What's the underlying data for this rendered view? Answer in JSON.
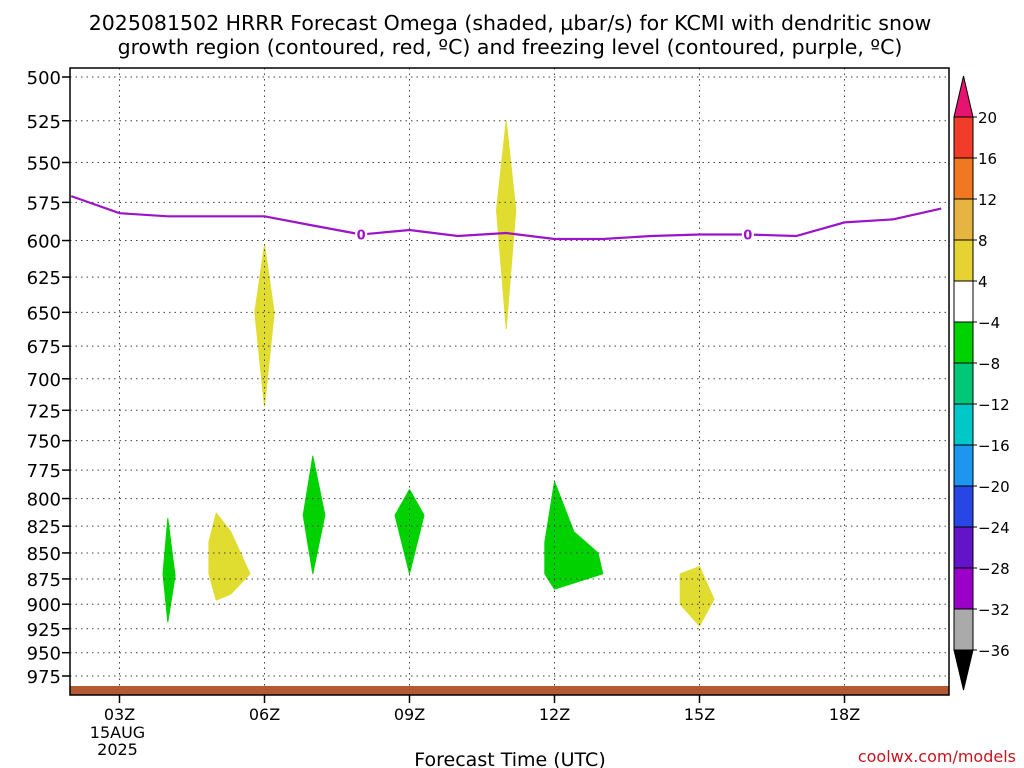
{
  "chart_data": {
    "type": "area",
    "title_line1": "2025081502 HRRR Forecast Omega (shaded, µbar/s) for KCMI with dendritic snow",
    "title_line2": "growth region (contoured, red, ºC) and freezing level (contoured, purple, ºC)",
    "xlabel": "Forecast Time (UTC)",
    "credit": "coolwx.com/models",
    "y_ticks": [
      500,
      525,
      550,
      575,
      600,
      625,
      650,
      675,
      700,
      725,
      750,
      775,
      800,
      825,
      850,
      875,
      900,
      925,
      950,
      975
    ],
    "ylim": [
      500,
      1000
    ],
    "y_scale": "log-pressure (inverted)",
    "x_ticks": [
      {
        "hour": 3,
        "label": "03Z",
        "date": "15AUG",
        "year": "2025"
      },
      {
        "hour": 6,
        "label": "06Z"
      },
      {
        "hour": 9,
        "label": "09Z"
      },
      {
        "hour": 12,
        "label": "12Z"
      },
      {
        "hour": 15,
        "label": "15Z"
      },
      {
        "hour": 18,
        "label": "18Z"
      }
    ],
    "xlim": [
      2,
      20
    ],
    "grid": true,
    "freezing_level": {
      "contour_label": "0",
      "color": "#9c14c8",
      "points": [
        [
          2,
          571
        ],
        [
          3,
          582
        ],
        [
          4,
          584
        ],
        [
          5,
          584
        ],
        [
          6,
          584
        ],
        [
          7,
          590
        ],
        [
          8,
          596
        ],
        [
          9,
          593
        ],
        [
          10,
          597
        ],
        [
          11,
          595
        ],
        [
          12,
          599
        ],
        [
          13,
          599
        ],
        [
          14,
          597
        ],
        [
          15,
          596
        ],
        [
          16,
          596
        ],
        [
          17,
          597
        ],
        [
          18,
          588
        ],
        [
          19,
          586
        ],
        [
          20,
          579
        ]
      ],
      "label_positions": [
        [
          8,
          596
        ],
        [
          16,
          596
        ]
      ]
    },
    "omega_regions": [
      {
        "color": "#e0dc30",
        "points": [
          [
            11.0,
            525
          ],
          [
            11.2,
            580
          ],
          [
            11.0,
            662
          ],
          [
            10.8,
            580
          ]
        ]
      },
      {
        "color": "#e0dc30",
        "points": [
          [
            6.0,
            603
          ],
          [
            6.2,
            650
          ],
          [
            6.0,
            722
          ],
          [
            5.8,
            650
          ]
        ]
      },
      {
        "color": "#00d200",
        "points": [
          [
            7.0,
            763
          ],
          [
            7.25,
            815
          ],
          [
            7.0,
            870
          ],
          [
            6.8,
            815
          ]
        ]
      },
      {
        "color": "#00d200",
        "points": [
          [
            4.0,
            818
          ],
          [
            4.15,
            872
          ],
          [
            4.0,
            918
          ],
          [
            3.9,
            870
          ]
        ]
      },
      {
        "color": "#e0dc30",
        "points": [
          [
            5.0,
            813
          ],
          [
            5.3,
            830
          ],
          [
            5.7,
            870
          ],
          [
            5.3,
            890
          ],
          [
            5.0,
            896
          ],
          [
            4.85,
            870
          ],
          [
            4.85,
            840
          ]
        ]
      },
      {
        "color": "#00d200",
        "points": [
          [
            9.0,
            792
          ],
          [
            9.3,
            815
          ],
          [
            9.0,
            870
          ],
          [
            8.7,
            815
          ]
        ]
      },
      {
        "color": "#00d200",
        "points": [
          [
            12.0,
            785
          ],
          [
            12.4,
            830
          ],
          [
            12.9,
            850
          ],
          [
            13.0,
            870
          ],
          [
            12.0,
            885
          ],
          [
            11.8,
            870
          ],
          [
            11.8,
            840
          ]
        ]
      },
      {
        "color": "#e0dc30",
        "points": [
          [
            15.0,
            863
          ],
          [
            15.3,
            895
          ],
          [
            15.0,
            922
          ],
          [
            14.6,
            900
          ],
          [
            14.6,
            870
          ]
        ]
      }
    ],
    "terrain_color": "#b35a32",
    "colorbar": {
      "labels": [
        "20",
        "16",
        "12",
        "8",
        "4",
        "−4",
        "−8",
        "−12",
        "−16",
        "−20",
        "−24",
        "−28",
        "−32",
        "−36"
      ],
      "colors": [
        "#f03c28",
        "#f07820",
        "#e6b440",
        "#e6d232",
        "#ffffff",
        "#00d200",
        "#00c878",
        "#00c8c8",
        "#1e96f0",
        "#2846e6",
        "#6414c8",
        "#9b00c8",
        "#aaaaaa"
      ],
      "top_arrow_color": "#e6146e",
      "bottom_arrow_color": "#000000"
    }
  }
}
